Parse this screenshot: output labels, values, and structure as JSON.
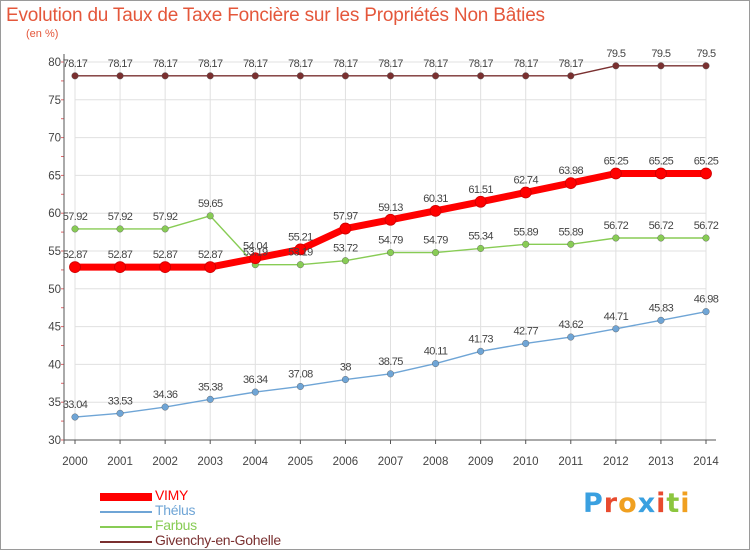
{
  "chart_data": {
    "type": "line",
    "title": "Evolution du Taux de Taxe Foncière sur les Propriétés Non Bâties",
    "ylabel": "(en %)",
    "xlabel": "",
    "ylim": [
      30,
      80
    ],
    "yticks": [
      30,
      35,
      40,
      45,
      50,
      55,
      60,
      65,
      70,
      75,
      80
    ],
    "x": [
      "2000",
      "2001",
      "2002",
      "2003",
      "2004",
      "2005",
      "2006",
      "2007",
      "2008",
      "2009",
      "2010",
      "2011",
      "2012",
      "2013",
      "2014"
    ],
    "series": [
      {
        "name": "Givenchy-en-Gohelle",
        "color": "#7a3030",
        "values": [
          78.17,
          78.17,
          78.17,
          78.17,
          78.17,
          78.17,
          78.17,
          78.17,
          78.17,
          78.17,
          78.17,
          78.17,
          79.5,
          79.5,
          79.5
        ],
        "labels": [
          "78.17",
          "78.17",
          "78.17",
          "78.17",
          "78.17",
          "78.17",
          "78.17",
          "78.17",
          "78.17",
          "78.17",
          "78.17",
          "78.17",
          "79.5",
          "79.5",
          "79.5"
        ]
      },
      {
        "name": "Farbus",
        "color": "#88cc55",
        "values": [
          57.92,
          57.92,
          57.92,
          59.65,
          53.19,
          53.19,
          53.72,
          54.79,
          54.79,
          55.34,
          55.89,
          55.89,
          56.72,
          56.72,
          56.72
        ],
        "labels": [
          "57.92",
          "57.92",
          "57.92",
          "59.65",
          "53.19",
          "53.19",
          "53.72",
          "54.79",
          "54.79",
          "55.34",
          "55.89",
          "55.89",
          "56.72",
          "56.72",
          "56.72"
        ]
      },
      {
        "name": "Thélus",
        "color": "#6fa5d6",
        "values": [
          33.04,
          33.53,
          34.36,
          35.38,
          36.34,
          37.08,
          38,
          38.75,
          40.11,
          41.73,
          42.77,
          43.62,
          44.71,
          45.83,
          46.98
        ],
        "labels": [
          "33.04",
          "33.53",
          "34.36",
          "35.38",
          "36.34",
          "37.08",
          "38",
          "38.75",
          "40.11",
          "41.73",
          "42.77",
          "43.62",
          "44.71",
          "45.83",
          "46.98"
        ]
      },
      {
        "name": "VIMY",
        "color": "#ff0000",
        "values": [
          52.87,
          52.87,
          52.87,
          52.87,
          54.04,
          55.21,
          57.97,
          59.13,
          60.31,
          61.51,
          62.74,
          63.98,
          65.25,
          65.25,
          65.25
        ],
        "labels": [
          "52.87",
          "52.87",
          "52.87",
          "52.87",
          "54.04",
          "55.21",
          "57.97",
          "59.13",
          "60.31",
          "61.51",
          "62.74",
          "63.98",
          "65.25",
          "65.25",
          "65.25"
        ]
      }
    ],
    "legend": [
      "VIMY",
      "Thélus",
      "Farbus",
      "Givenchy-en-Gohelle"
    ],
    "legend_position": "bottom-left"
  },
  "colors": {
    "title": "#e4573b",
    "grid": "#e0e0e0",
    "axis": "#555555",
    "legend_vimy": "#ff0000",
    "legend_thelus": "#6fa5d6",
    "legend_farbus": "#88cc55",
    "legend_givenchy": "#7a3030"
  },
  "logo": {
    "letters": [
      "P",
      "r",
      "o",
      "x",
      "i",
      "t",
      "i"
    ],
    "colors": [
      "#3aa0e0",
      "#e84a2e",
      "#f0a020",
      "#3aa0e0",
      "#e84a2e",
      "#8cc63f",
      "#f0a020"
    ]
  }
}
